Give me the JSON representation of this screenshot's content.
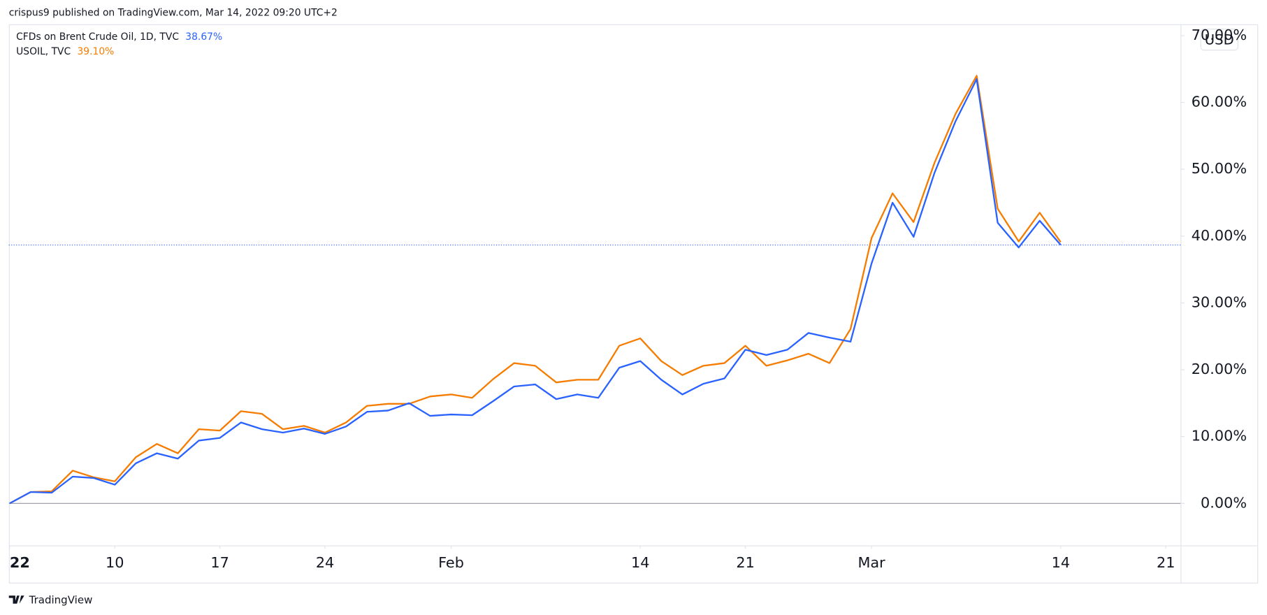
{
  "header": "crispus9 published on TradingView.com, Mar 14, 2022 09:20 UTC+2",
  "footer": "TradingView",
  "currency": "USD",
  "chart_data": {
    "type": "line",
    "series": [
      {
        "name": "CFDs on Brent Crude Oil, 1D, TVC",
        "color": "#2962ff",
        "values": [
          0,
          1.7,
          1.6,
          4.0,
          3.8,
          2.8,
          6.0,
          7.5,
          6.7,
          9.4,
          9.8,
          12.1,
          11.1,
          10.6,
          11.2,
          10.4,
          11.5,
          13.7,
          13.9,
          15.0,
          13.1,
          13.3,
          13.2,
          15.3,
          17.5,
          17.8,
          15.6,
          16.3,
          15.8,
          20.3,
          21.3,
          18.5,
          16.3,
          17.9,
          18.7,
          23.0,
          22.2,
          23.0,
          25.5,
          24.8,
          24.2,
          35.9,
          45.0,
          39.9,
          49.5,
          57.2,
          63.5,
          42.0,
          38.3,
          42.3,
          38.67
        ],
        "value_labels": [
          null,
          null,
          null,
          null,
          null,
          null,
          null,
          null,
          null,
          null,
          null,
          null,
          null,
          null,
          null,
          null,
          null,
          null,
          null,
          null,
          null,
          null,
          null,
          null,
          null,
          null,
          null,
          null,
          null,
          null,
          null,
          null,
          null,
          null,
          null,
          null,
          null,
          null,
          null,
          null,
          null,
          null,
          null,
          null,
          null,
          null,
          null,
          null,
          null,
          null,
          "38.67%"
        ]
      },
      {
        "name": "USOIL, TVC",
        "color": "#f57c00",
        "values": [
          0,
          1.7,
          1.8,
          4.9,
          3.9,
          3.3,
          6.9,
          8.9,
          7.5,
          11.1,
          10.9,
          13.8,
          13.4,
          11.1,
          11.6,
          10.6,
          12.1,
          14.6,
          14.9,
          14.9,
          16.0,
          16.3,
          15.8,
          18.6,
          21.0,
          20.6,
          18.1,
          18.5,
          18.5,
          23.6,
          24.7,
          21.3,
          19.2,
          20.6,
          21.0,
          23.6,
          20.6,
          21.4,
          22.4,
          21.0,
          26.1,
          39.7,
          46.4,
          42.1,
          51.0,
          58.3,
          64.0,
          44.1,
          39.2,
          43.5,
          39.1
        ],
        "value_labels": [
          null,
          null,
          null,
          null,
          null,
          null,
          null,
          null,
          null,
          null,
          null,
          null,
          null,
          null,
          null,
          null,
          null,
          null,
          null,
          null,
          null,
          null,
          null,
          null,
          null,
          null,
          null,
          null,
          null,
          null,
          null,
          null,
          null,
          null,
          null,
          null,
          null,
          null,
          null,
          null,
          null,
          null,
          null,
          null,
          null,
          null,
          null,
          null,
          null,
          null,
          "39.10%"
        ]
      }
    ],
    "xlim": [
      0,
      55.7
    ],
    "xticks": [
      {
        "value": 0,
        "label": "22"
      },
      {
        "value": 5,
        "label": "10"
      },
      {
        "value": 10,
        "label": "17"
      },
      {
        "value": 15,
        "label": "24"
      },
      {
        "value": 21,
        "label": "Feb"
      },
      {
        "value": 30,
        "label": "14"
      },
      {
        "value": 35,
        "label": "21"
      },
      {
        "value": 41,
        "label": "Mar"
      },
      {
        "value": 50,
        "label": "14"
      },
      {
        "value": 55,
        "label": "21"
      }
    ],
    "ylim": [
      -6.3,
      71.7
    ],
    "yticks": [
      {
        "value": 0,
        "label": "0.00%"
      },
      {
        "value": 10,
        "label": "10.00%"
      },
      {
        "value": 20,
        "label": "20.00%"
      },
      {
        "value": 30,
        "label": "30.00%"
      },
      {
        "value": 40,
        "label": "40.00%"
      },
      {
        "value": 50,
        "label": "50.00%"
      },
      {
        "value": 60,
        "label": "60.00%"
      },
      {
        "value": 70,
        "label": "70.00%"
      }
    ]
  }
}
